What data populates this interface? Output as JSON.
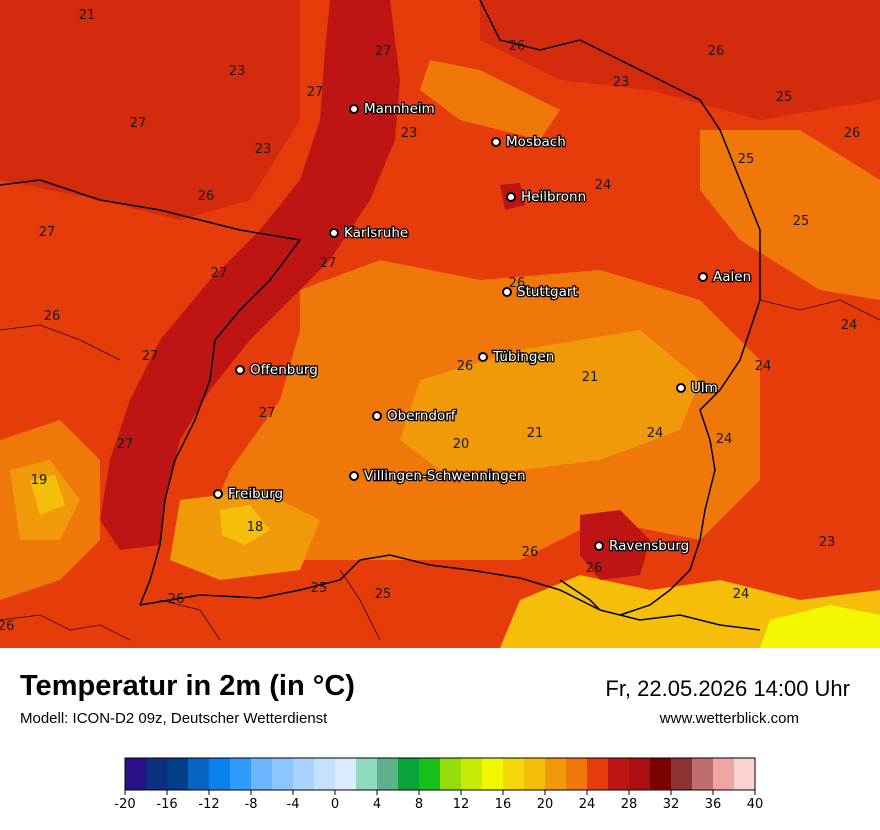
{
  "header": {
    "title": "Temperatur in 2m (in °C)",
    "model": "Modell: ICON-D2 09z, Deutscher Wetterdienst",
    "datetime": "Fr, 22.05.2026 14:00 Uhr",
    "website": "www.wetterblick.com"
  },
  "map": {
    "cities": [
      {
        "name": "Mannheim"
      },
      {
        "name": "Mosbach"
      },
      {
        "name": "Heilbronn"
      },
      {
        "name": "Karlsruhe"
      },
      {
        "name": "Stuttgart"
      },
      {
        "name": "Aalen"
      },
      {
        "name": "Tübingen"
      },
      {
        "name": "Offenburg"
      },
      {
        "name": "Ulm"
      },
      {
        "name": "Oberndorf"
      },
      {
        "name": "Villingen-Schwenningen"
      },
      {
        "name": "Freiburg"
      },
      {
        "name": "Ravensburg"
      }
    ],
    "values": [
      "21",
      "27",
      "26",
      "26",
      "23",
      "27",
      "23",
      "25",
      "27",
      "26",
      "23",
      "25",
      "23",
      "24",
      "26",
      "27",
      "25",
      "27",
      "27",
      "26",
      "26",
      "24",
      "24",
      "27",
      "26",
      "21",
      "21",
      "24",
      "24",
      "27",
      "27",
      "20",
      "19",
      "18",
      "26",
      "26",
      "23",
      "25",
      "26",
      "25",
      "26",
      "24"
    ]
  },
  "legend": {
    "colors": [
      "#2b0f8a",
      "#0b2f7e",
      "#003f87",
      "#0a64c4",
      "#0a82ee",
      "#2f9bff",
      "#6cb6ff",
      "#8bc6ff",
      "#a9d2ff",
      "#c6e0ff",
      "#dcebff",
      "#8fd9bc",
      "#5fb08d",
      "#0aa33c",
      "#17bf17",
      "#94dd0a",
      "#c8eb06",
      "#f2f700",
      "#f4d80a",
      "#f4be0a",
      "#f09a0a",
      "#f0780a",
      "#e63b0a",
      "#be1414",
      "#aa0f14",
      "#7d0000",
      "#8c3232",
      "#be6e6e",
      "#f0a5a5",
      "#fad2d2"
    ],
    "ticks": [
      "-20",
      "-16",
      "-12",
      "-8",
      "-4",
      "0",
      "4",
      "8",
      "12",
      "16",
      "20",
      "24",
      "28",
      "32",
      "36",
      "40"
    ],
    "range": [
      -20,
      40
    ]
  }
}
